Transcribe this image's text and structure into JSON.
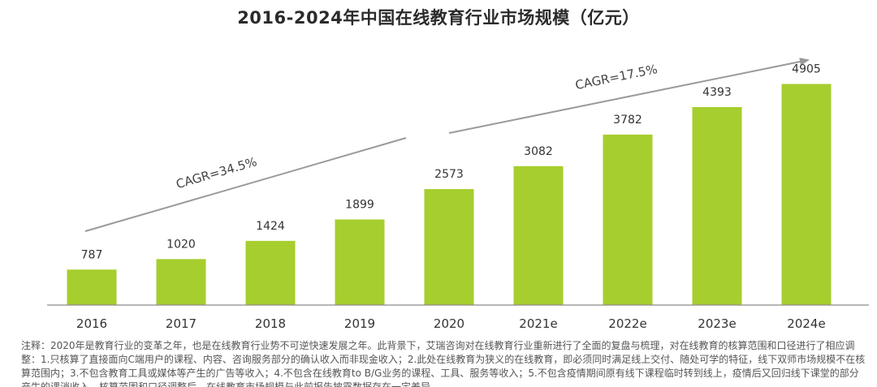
{
  "colors": {
    "bar": "#a6ce2e",
    "axis": "#8c8c8c",
    "label": "#333333",
    "arrow": "#9a9a9a"
  },
  "chart_data": {
    "type": "bar",
    "title": "2016-2024年中国在线教育行业市场规模（亿元）",
    "categories": [
      "2016",
      "2017",
      "2018",
      "2019",
      "2020",
      "2021e",
      "2022e",
      "2023e",
      "2024e"
    ],
    "series": [
      {
        "values": [
          787,
          1020,
          1424,
          1899,
          2573,
          3082,
          3782,
          4393,
          4905
        ]
      }
    ],
    "data_labels": [
      "787",
      "1020",
      "1424",
      "1899",
      "2573",
      "3082",
      "3782",
      "4393",
      "4905"
    ],
    "ylim": [
      0,
      5400
    ],
    "grid": false,
    "annotations": [
      {
        "text": "CAGR=34.5%",
        "from": "2016",
        "to": "2020"
      },
      {
        "text": "CAGR=17.5%",
        "from": "2020",
        "to": "2024e"
      }
    ]
  },
  "note": "注释：2020年是教育行业的变革之年，也是在线教育行业势不可逆快速发展之年。此背景下，艾瑞咨询对在线教育行业重新进行了全面的复盘与梳理，对在线教育的核算范围和口径进行了相应调整：1.只核算了直接面向C端用户的课程、内容、咨询服务部分的确认收入而非现金收入；2.此处在线教育为狭义的在线教育，即必须同时满足线上交付、随处可学的特征，线下双师市场规模不在核算范围内；3.不包含教育工具或媒体等产生的广告等收入；4.不包含在线教育to B/G业务的课程、工具、服务等收入；5.不包含疫情期间原有线下课程临时转到线上，疫情后又回归线下课堂的部分产生的课消收入。核算范围和口径调整后，在线教育市场规模与此前报告披露数据存在一定差异。"
}
